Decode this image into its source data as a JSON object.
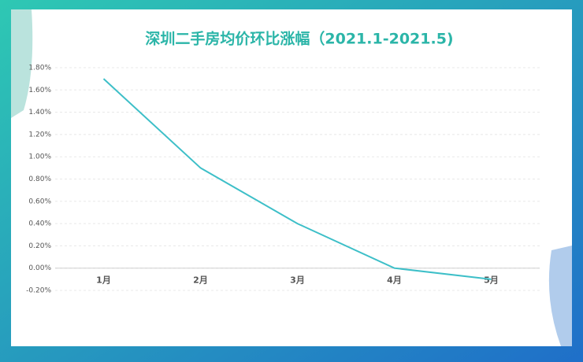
{
  "chart_data": {
    "type": "line",
    "title": "深圳二手房均价环比涨幅（2021.1-2021.5)",
    "categories": [
      "1月",
      "2月",
      "3月",
      "4月",
      "5月"
    ],
    "series": [
      {
        "name": "环比涨幅",
        "color": "#3dbfc8",
        "values": [
          1.7,
          0.9,
          0.4,
          0.0,
          -0.1
        ]
      }
    ],
    "ylim": [
      -0.2,
      1.8
    ],
    "yticks": [
      {
        "value": -0.2,
        "label": "-0.20%"
      },
      {
        "value": 0,
        "label": "0.00%"
      },
      {
        "value": 0.2,
        "label": "0.20%"
      },
      {
        "value": 0.4,
        "label": "0.40%"
      },
      {
        "value": 0.6,
        "label": "0.60%"
      },
      {
        "value": 0.8,
        "label": "0.80%"
      },
      {
        "value": 1.0,
        "label": "1.00%"
      },
      {
        "value": 1.2,
        "label": "1.20%"
      },
      {
        "value": 1.4,
        "label": "1.40%"
      },
      {
        "value": 1.6,
        "label": "1.60%"
      },
      {
        "value": 1.8,
        "label": "1.80%"
      }
    ],
    "grid": true
  }
}
